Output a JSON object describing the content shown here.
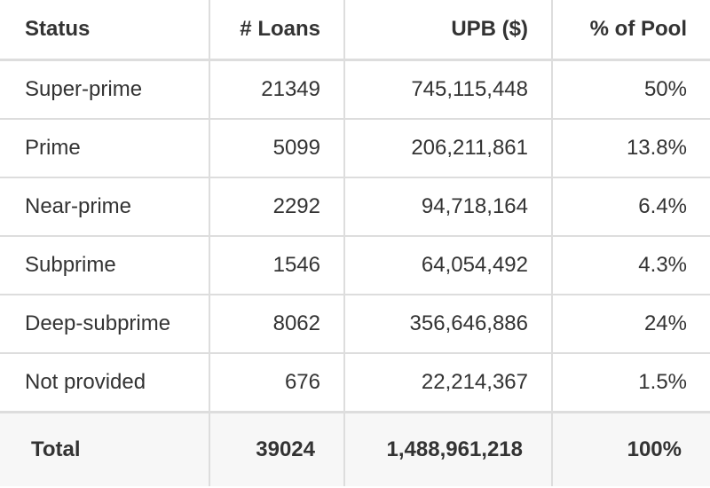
{
  "table": {
    "headers": [
      "Status",
      "# Loans",
      "UPB ($)",
      "% of Pool"
    ],
    "rows": [
      [
        "Super-prime",
        "21349",
        "745,115,448",
        "50%"
      ],
      [
        "Prime",
        "5099",
        "206,211,861",
        "13.8%"
      ],
      [
        "Near-prime",
        "2292",
        "94,718,164",
        "6.4%"
      ],
      [
        "Subprime",
        "1546",
        "64,054,492",
        "4.3%"
      ],
      [
        "Deep-subprime",
        "8062",
        "356,646,886",
        "24%"
      ],
      [
        "Not provided",
        "676",
        "22,214,367",
        "1.5%"
      ]
    ],
    "total": [
      "Total",
      "39024",
      "1,488,961,218",
      "100%"
    ]
  }
}
